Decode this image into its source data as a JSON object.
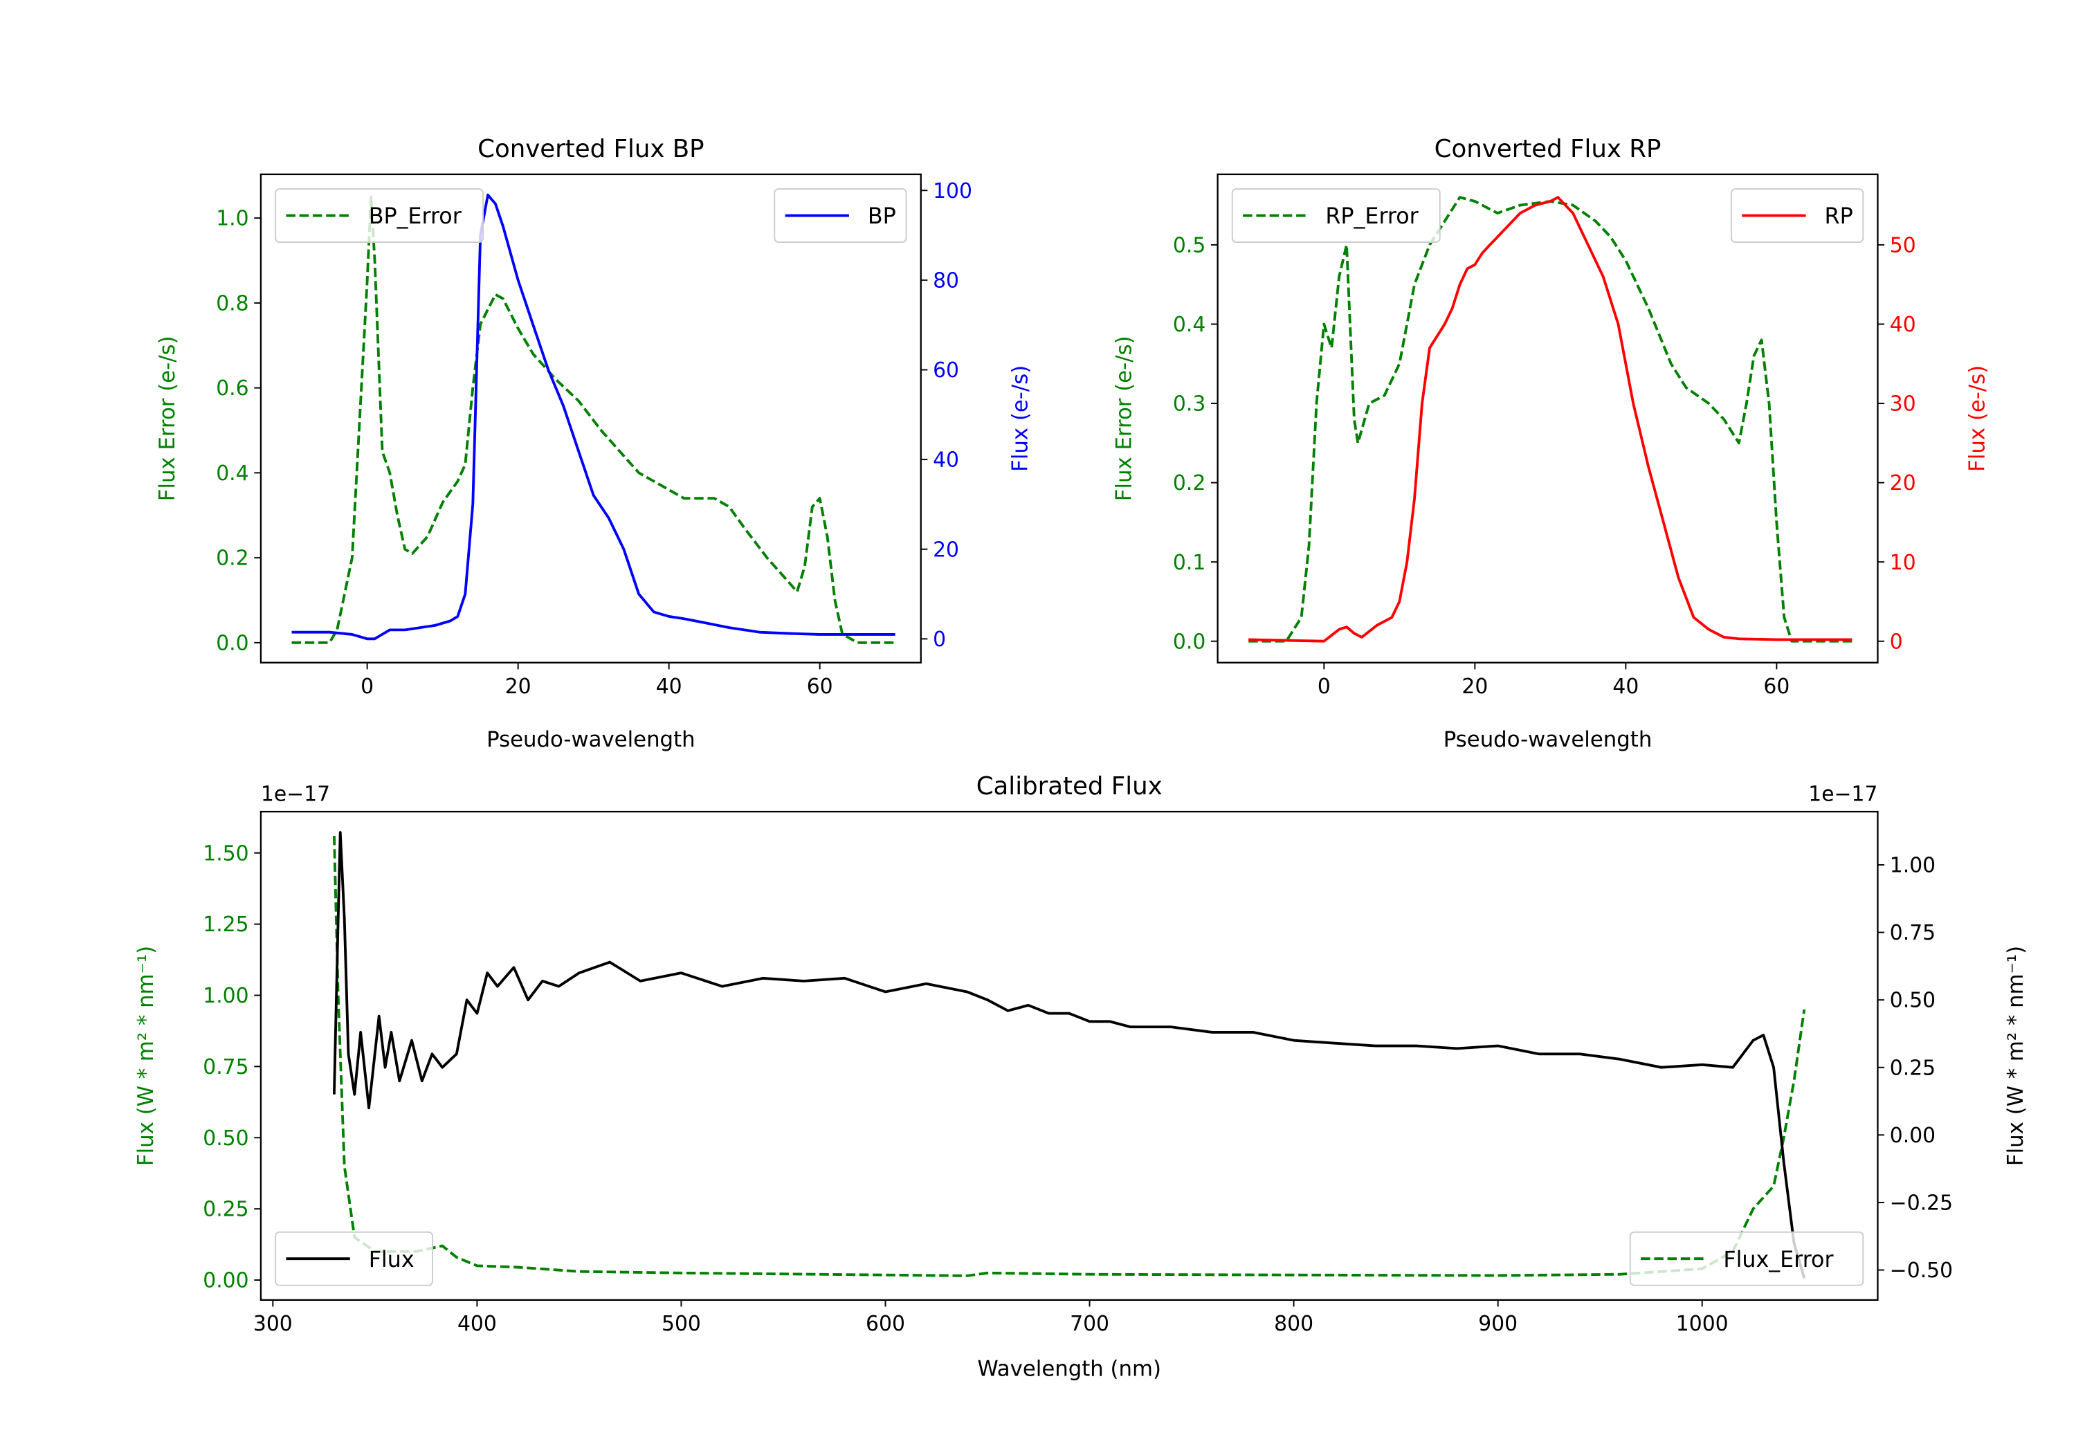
{
  "chart_data": [
    {
      "type": "line",
      "title": "Converted Flux BP",
      "xlabel": "Pseudo-wavelength",
      "xlim": [
        -14.1,
        73.4
      ],
      "xticks": [
        0,
        20,
        40,
        60
      ],
      "y_left": {
        "label": "Flux Error (e-/s)",
        "color": "#008000",
        "lim": [
          -0.047,
          1.103
        ],
        "ticks": [
          0.0,
          0.2,
          0.4,
          0.6,
          0.8,
          1.0
        ],
        "tick_labels": [
          "0.0",
          "0.2",
          "0.4",
          "0.6",
          "0.8",
          "1.0"
        ]
      },
      "y_right": {
        "label": "Flux (e-/s)",
        "color": "#0000ff",
        "lim": [
          -5.3,
          103.6
        ],
        "ticks": [
          0,
          20,
          40,
          60,
          80,
          100
        ],
        "tick_labels": [
          "0",
          "20",
          "40",
          "60",
          "80",
          "100"
        ]
      },
      "series": [
        {
          "name": "BP_Error",
          "axis": "left",
          "color": "#008000",
          "style": "dashed",
          "legend": "top-left",
          "x": [
            -10,
            -5,
            -4,
            -2,
            0,
            0.5,
            1,
            2,
            3,
            4,
            5,
            6,
            8,
            10,
            12,
            13,
            14,
            15,
            17,
            18,
            20,
            22,
            25,
            28,
            31,
            34,
            36,
            39,
            42,
            46,
            48,
            50,
            53,
            55,
            57,
            58,
            59,
            60,
            61,
            62,
            63,
            65,
            70
          ],
          "y": [
            0,
            0,
            0.03,
            0.2,
            0.85,
            1.05,
            0.9,
            0.45,
            0.4,
            0.3,
            0.22,
            0.21,
            0.25,
            0.33,
            0.38,
            0.42,
            0.6,
            0.75,
            0.82,
            0.81,
            0.74,
            0.68,
            0.62,
            0.57,
            0.5,
            0.44,
            0.4,
            0.37,
            0.34,
            0.34,
            0.32,
            0.27,
            0.2,
            0.16,
            0.12,
            0.18,
            0.32,
            0.34,
            0.25,
            0.1,
            0.02,
            0,
            0
          ]
        },
        {
          "name": "BP",
          "axis": "right",
          "color": "#0000ff",
          "style": "solid",
          "legend": "top-right",
          "x": [
            -10,
            -5,
            -2,
            0,
            1,
            3,
            5,
            7,
            9,
            11,
            12,
            13,
            14,
            15,
            16,
            17,
            18,
            20,
            22,
            24,
            26,
            28,
            30,
            32,
            34,
            36,
            38,
            40,
            42,
            45,
            48,
            52,
            56,
            60,
            65,
            70
          ],
          "y": [
            1.5,
            1.5,
            1,
            0,
            0,
            2,
            2,
            2.5,
            3,
            4,
            5,
            10,
            30,
            90,
            99,
            97,
            92,
            80,
            70,
            60,
            52,
            42,
            32,
            27,
            20,
            10,
            6,
            5,
            4.5,
            3.5,
            2.5,
            1.5,
            1.2,
            1,
            1,
            1
          ]
        }
      ]
    },
    {
      "type": "line",
      "title": "Converted Flux RP",
      "xlabel": "Pseudo-wavelength",
      "xlim": [
        -14.1,
        73.4
      ],
      "xticks": [
        0,
        20,
        40,
        60
      ],
      "y_left": {
        "label": "Flux Error (e-/s)",
        "color": "#008000",
        "lim": [
          -0.027,
          0.589
        ],
        "ticks": [
          0.0,
          0.1,
          0.2,
          0.3,
          0.4,
          0.5
        ],
        "tick_labels": [
          "0.0",
          "0.1",
          "0.2",
          "0.3",
          "0.4",
          "0.5"
        ]
      },
      "y_right": {
        "label": "Flux (e-/s)",
        "color": "#ff0000",
        "lim": [
          -2.7,
          58.9
        ],
        "ticks": [
          0,
          10,
          20,
          30,
          40,
          50
        ],
        "tick_labels": [
          "0",
          "10",
          "20",
          "30",
          "40",
          "50"
        ]
      },
      "series": [
        {
          "name": "RP_Error",
          "axis": "left",
          "color": "#008000",
          "style": "dashed",
          "legend": "top-left",
          "x": [
            -10,
            -5,
            -3,
            -2,
            -1,
            0,
            1,
            2,
            3,
            4,
            4.5,
            6,
            8,
            10,
            12,
            14,
            16,
            18,
            20,
            23,
            26,
            30,
            33,
            36,
            38,
            40,
            43,
            46,
            48,
            51,
            53,
            55,
            56,
            57,
            58,
            59,
            60,
            61,
            62,
            70
          ],
          "y": [
            0,
            0,
            0.03,
            0.12,
            0.3,
            0.4,
            0.37,
            0.46,
            0.5,
            0.28,
            0.25,
            0.3,
            0.31,
            0.35,
            0.45,
            0.5,
            0.53,
            0.56,
            0.555,
            0.54,
            0.55,
            0.555,
            0.55,
            0.53,
            0.51,
            0.48,
            0.42,
            0.35,
            0.32,
            0.3,
            0.28,
            0.25,
            0.3,
            0.36,
            0.38,
            0.3,
            0.15,
            0.03,
            0,
            0
          ]
        },
        {
          "name": "RP",
          "axis": "right",
          "color": "#ff0000",
          "style": "solid",
          "legend": "top-right",
          "x": [
            -10,
            0,
            2,
            3,
            4,
            5,
            7,
            9,
            10,
            11,
            12,
            13,
            14,
            16,
            17,
            18,
            19,
            20,
            21,
            22,
            24,
            26,
            28,
            30,
            31,
            32,
            33,
            35,
            37,
            39,
            41,
            43,
            45,
            47,
            49,
            51,
            53,
            55,
            60,
            70
          ],
          "y": [
            0.2,
            0,
            1.5,
            1.8,
            1,
            0.5,
            2,
            3,
            5,
            10,
            18,
            30,
            37,
            40,
            42,
            45,
            47,
            47.5,
            49,
            50,
            52,
            54,
            55,
            55.5,
            56,
            55,
            54,
            50,
            46,
            40,
            30,
            22,
            15,
            8,
            3,
            1.5,
            0.5,
            0.3,
            0.2,
            0.2
          ]
        }
      ]
    },
    {
      "type": "line",
      "title": "Calibrated Flux",
      "xlabel": "Wavelength (nm)",
      "xlim": [
        294.1,
        1086
      ],
      "xticks": [
        300,
        400,
        500,
        600,
        700,
        800,
        900,
        1000
      ],
      "y_left": {
        "label": "Flux (W * m² * nm⁻¹)",
        "offset": "1e−17",
        "color": "#008000",
        "lim": [
          -0.07,
          1.645
        ],
        "ticks": [
          0,
          0.25,
          0.5,
          0.75,
          1.0,
          1.25,
          1.5
        ],
        "tick_labels": [
          "0.00",
          "0.25",
          "0.50",
          "0.75",
          "1.00",
          "1.25",
          "1.50"
        ]
      },
      "y_right": {
        "label": "Flux (W * m² * nm⁻¹)",
        "offset": "1e−17",
        "color": "#000000",
        "lim": [
          -0.611,
          1.197
        ],
        "ticks": [
          -0.5,
          -0.25,
          0,
          0.25,
          0.5,
          0.75,
          1.0
        ],
        "tick_labels": [
          "−0.50",
          "−0.25",
          "0.00",
          "0.25",
          "0.50",
          "0.75",
          "1.00"
        ]
      },
      "series": [
        {
          "name": "Flux_Error",
          "axis": "left",
          "color": "#008000",
          "style": "dashed",
          "legend": "bottom-right",
          "x": [
            330,
            332,
            335,
            340,
            350,
            370,
            383,
            390,
            400,
            420,
            450,
            500,
            600,
            640,
            650,
            700,
            800,
            900,
            960,
            1000,
            1015,
            1025,
            1035,
            1040,
            1045,
            1050
          ],
          "y": [
            1.56,
            1.0,
            0.4,
            0.15,
            0.1,
            0.1,
            0.12,
            0.08,
            0.05,
            0.045,
            0.03,
            0.025,
            0.018,
            0.015,
            0.025,
            0.02,
            0.018,
            0.016,
            0.02,
            0.04,
            0.1,
            0.25,
            0.33,
            0.5,
            0.7,
            0.95
          ]
        },
        {
          "name": "Flux",
          "axis": "right",
          "color": "#000000",
          "style": "solid",
          "legend": "bottom-left",
          "x": [
            330,
            332,
            333,
            335,
            337,
            340,
            343,
            347,
            352,
            355,
            358,
            362,
            368,
            373,
            378,
            383,
            390,
            395,
            400,
            405,
            410,
            418,
            425,
            432,
            440,
            450,
            465,
            480,
            500,
            520,
            540,
            560,
            580,
            600,
            620,
            640,
            650,
            660,
            670,
            680,
            690,
            700,
            710,
            720,
            740,
            760,
            780,
            800,
            820,
            840,
            860,
            880,
            900,
            920,
            940,
            960,
            980,
            1000,
            1015,
            1025,
            1030,
            1035,
            1040,
            1045,
            1050
          ],
          "y": [
            0.15,
            0.8,
            1.12,
            0.8,
            0.3,
            0.15,
            0.38,
            0.1,
            0.44,
            0.25,
            0.38,
            0.2,
            0.35,
            0.2,
            0.3,
            0.25,
            0.3,
            0.5,
            0.45,
            0.6,
            0.55,
            0.62,
            0.5,
            0.57,
            0.55,
            0.6,
            0.64,
            0.57,
            0.6,
            0.55,
            0.58,
            0.57,
            0.58,
            0.53,
            0.56,
            0.53,
            0.5,
            0.46,
            0.48,
            0.45,
            0.45,
            0.42,
            0.42,
            0.4,
            0.4,
            0.38,
            0.38,
            0.35,
            0.34,
            0.33,
            0.33,
            0.32,
            0.33,
            0.3,
            0.3,
            0.28,
            0.25,
            0.26,
            0.25,
            0.35,
            0.37,
            0.25,
            -0.1,
            -0.4,
            -0.53
          ]
        }
      ]
    }
  ]
}
